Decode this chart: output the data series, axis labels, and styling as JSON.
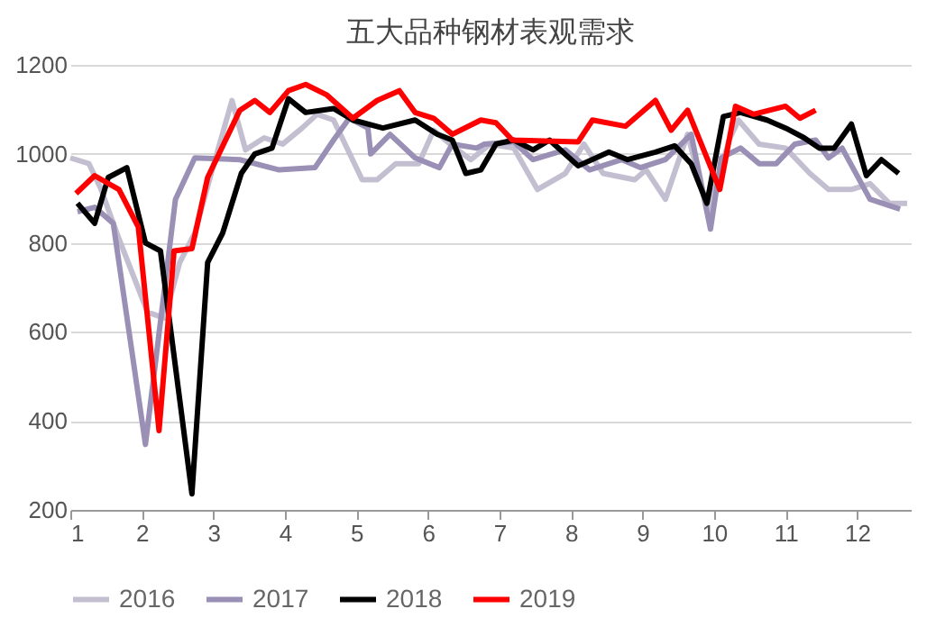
{
  "chart_data": {
    "type": "line",
    "title": "五大品种钢材表观需求",
    "xlim": [
      1,
      12.75
    ],
    "xticks": [
      1,
      2,
      3,
      4,
      5,
      6,
      7,
      8,
      9,
      10,
      11,
      12
    ],
    "ylim": [
      200,
      1200
    ],
    "yticks": [
      200,
      400,
      600,
      800,
      1000,
      1200
    ],
    "grid": "y",
    "legend": "bottom",
    "line_style": "solid",
    "marker": "none",
    "series": [
      {
        "name": "2016",
        "color": "#c3bfd1",
        "x": [
          1.0,
          1.26,
          1.42,
          1.68,
          2.08,
          2.32,
          2.53,
          2.74,
          2.97,
          3.26,
          3.45,
          3.71,
          3.97,
          4.24,
          4.45,
          4.68,
          5.08,
          5.29,
          5.55,
          5.87,
          6.08,
          6.34,
          6.6,
          6.87,
          7.2,
          7.53,
          7.92,
          8.18,
          8.45,
          8.89,
          9.05,
          9.32,
          9.63,
          9.92,
          10.21,
          10.34,
          10.63,
          11.0,
          11.34,
          11.6,
          11.92,
          12.18,
          12.45,
          12.7
        ],
        "values": [
          991,
          978,
          924,
          809,
          644,
          631,
          756,
          822,
          956,
          1120,
          1009,
          1036,
          1022,
          1058,
          1089,
          1076,
          942,
          942,
          978,
          978,
          1053,
          1018,
          987,
          1022,
          1013,
          920,
          956,
          1022,
          956,
          942,
          964,
          898,
          1044,
          867,
          1031,
          1076,
          1022,
          1013,
          956,
          920,
          920,
          933,
          889,
          889
        ]
      },
      {
        "name": "2017",
        "color": "#9a8fb5",
        "x": [
          1.1,
          1.34,
          1.6,
          2.05,
          2.47,
          2.74,
          3.37,
          3.92,
          4.42,
          4.68,
          4.9,
          5.16,
          5.2,
          5.47,
          5.82,
          6.16,
          6.34,
          6.68,
          6.79,
          7.2,
          7.47,
          7.92,
          8.26,
          8.71,
          8.97,
          9.32,
          9.68,
          9.95,
          10.1,
          10.37,
          10.63,
          10.87,
          11.13,
          11.42,
          11.6,
          11.79,
          12.18,
          12.6
        ],
        "values": [
          870,
          880,
          844,
          347,
          898,
          991,
          987,
          964,
          969,
          1031,
          1080,
          1058,
          1000,
          1044,
          991,
          969,
          1022,
          1013,
          1022,
          1027,
          987,
          1009,
          964,
          987,
          969,
          987,
          1044,
          831,
          991,
          1013,
          978,
          978,
          1022,
          1031,
          991,
          1013,
          898,
          876
        ]
      },
      {
        "name": "2018",
        "color": "#000000",
        "x": [
          1.1,
          1.34,
          1.53,
          1.79,
          2.05,
          2.26,
          2.7,
          2.92,
          3.13,
          3.39,
          3.58,
          3.82,
          4.05,
          4.29,
          4.68,
          4.95,
          5.37,
          5.82,
          6.13,
          6.34,
          6.53,
          6.74,
          6.95,
          7.2,
          7.47,
          7.7,
          8.1,
          8.53,
          8.79,
          9.18,
          9.45,
          9.68,
          9.9,
          10.13,
          10.37,
          10.74,
          11.0,
          11.26,
          11.47,
          11.68,
          11.92,
          12.13,
          12.34,
          12.58
        ],
        "values": [
          889,
          844,
          947,
          969,
          800,
          782,
          236,
          756,
          822,
          956,
          1000,
          1013,
          1124,
          1093,
          1102,
          1076,
          1058,
          1076,
          1044,
          1031,
          956,
          964,
          1022,
          1031,
          1009,
          1031,
          973,
          1004,
          987,
          1004,
          1018,
          978,
          889,
          1084,
          1093,
          1076,
          1058,
          1036,
          1013,
          1013,
          1067,
          951,
          987,
          956
        ]
      },
      {
        "name": "2019",
        "color": "#ff0000",
        "x": [
          1.08,
          1.34,
          1.68,
          1.95,
          2.24,
          2.45,
          2.7,
          2.92,
          3.37,
          3.58,
          3.79,
          4.05,
          4.29,
          4.58,
          4.95,
          5.29,
          5.6,
          5.82,
          6.08,
          6.34,
          6.74,
          6.95,
          7.18,
          8.1,
          8.3,
          8.76,
          9.18,
          9.4,
          9.63,
          10.08,
          10.3,
          10.55,
          11.0,
          11.2,
          11.42
        ],
        "values": [
          911,
          951,
          920,
          836,
          378,
          782,
          787,
          947,
          1098,
          1120,
          1093,
          1142,
          1156,
          1133,
          1080,
          1120,
          1142,
          1093,
          1080,
          1044,
          1076,
          1070,
          1031,
          1027,
          1076,
          1062,
          1120,
          1053,
          1098,
          920,
          1107,
          1089,
          1107,
          1080,
          1098
        ]
      }
    ]
  }
}
